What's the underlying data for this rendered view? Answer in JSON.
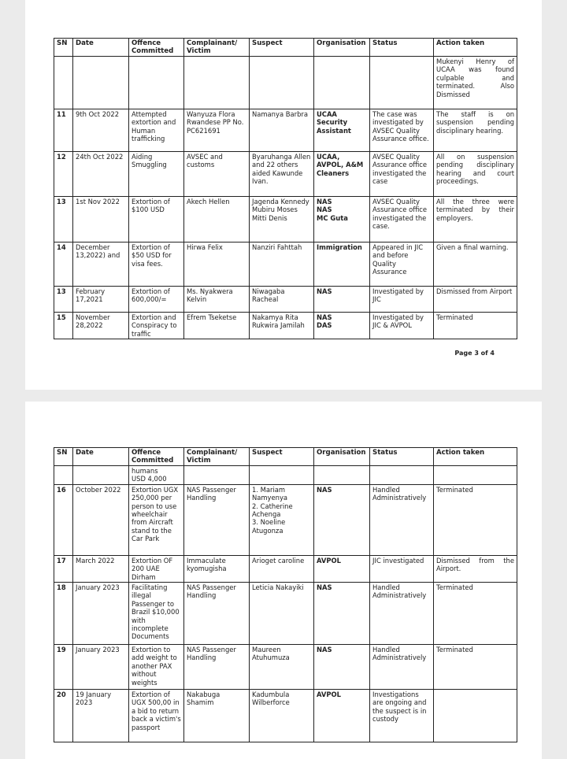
{
  "headers": [
    "SN",
    "Date",
    "Offence Committed",
    "Complainant/ Victim",
    "Suspect",
    "Organisation",
    "Status",
    "Action taken"
  ],
  "page1": {
    "rows": [
      {
        "sn": "",
        "date": "",
        "offence": "",
        "complainant": "",
        "suspect": "",
        "org": "",
        "status": "",
        "action": "Mukenyi Henry of UCAA was found culpable and terminated. Also Dismissed"
      },
      {
        "sn": "11",
        "date": "9th Oct 2022",
        "offence": "Attempted extortion and Human trafficking",
        "complainant": "Wanyuza Flora Rwandese PP No. PC621691",
        "suspect": "Namanya Barbra",
        "org": "UCAA Security Assistant",
        "status": "The case was investigated by AVSEC Quality Assurance office.",
        "action": "The staff is on suspension pending disciplinary hearing."
      },
      {
        "sn": "12",
        "date": "24th Oct 2022",
        "offence": "Aiding Smuggling",
        "complainant": "AVSEC and customs",
        "suspect": "Byaruhanga Allen and 22 others aided Kawunde Ivan.",
        "org": "UCAA, AVPOL, A&M Cleaners",
        "status": "AVSEC Quality Assurance office investigated the case",
        "action": "All on suspension pending disciplinary hearing and court proceedings."
      },
      {
        "sn": "13",
        "date": "1st Nov 2022",
        "offence": "Extortion of $100 USD",
        "complainant": "Akech Hellen",
        "suspect": "Jagenda Kennedy\nMubiru Moses\nMitti Denis",
        "org": "NAS\nNAS\nMC Guta",
        "status": "AVSEC Quality Assurance office investigated the case.",
        "action": "All the three were terminated by their employers."
      },
      {
        "sn": "14",
        "date": "December 13,2022) and",
        "offence": "Extortion of $50 USD for visa fees.",
        "complainant": "Hirwa Felix",
        "suspect": "Nanziri Fahttah",
        "org": "Immigration",
        "status": "Appeared in JIC and before Quality Assurance",
        "action": "Given a final warning."
      },
      {
        "sn": "13",
        "date": "February 17,2021",
        "offence": "Extortion of 600,000/=",
        "complainant": "Ms. Nyakwera Kelvin",
        "suspect": "Niwagaba Racheal",
        "org": "NAS",
        "status": "Investigated by JIC",
        "action": "Dismissed from Airport"
      },
      {
        "sn": "15",
        "date": "November 28,2022",
        "offence": "Extortion and Conspiracy to traffic",
        "complainant": "Efrem Tseketse",
        "suspect": "Nakamya Rita\nRukwira Jamilah",
        "org": "NAS\nDAS",
        "status": "Investigated by JIC & AVPOL",
        "action": "Terminated"
      }
    ],
    "page_label": "Page 3 of 4"
  },
  "page2": {
    "rows": [
      {
        "sn": "",
        "date": "",
        "offence": "humans\nUSD 4,000",
        "complainant": "",
        "suspect": "",
        "org": "",
        "status": "",
        "action": ""
      },
      {
        "sn": "16",
        "date": "October 2022",
        "offence": "Extortion UGX 250,000 per person to use wheelchair from Aircraft stand to the Car Park",
        "complainant": "NAS Passenger Handling",
        "suspect": "1. Mariam Namyenya\n2. Catherine Achenga\n3. Noeline Atugonza",
        "org": "NAS",
        "status": "Handled Administratively",
        "action": "Terminated"
      },
      {
        "sn": "17",
        "date": "March 2022",
        "offence": "Extortion OF 200 UAE Dirham",
        "complainant": "Immaculate kyomugisha",
        "suspect": "Arioget caroline",
        "org": "AVPOL",
        "status": "JIC investigated",
        "action": "Dismissed from the Airport."
      },
      {
        "sn": "18",
        "date": "January 2023",
        "offence": "Facilitating illegal Passenger to Brazil $10,000 with incomplete Documents",
        "complainant": "NAS Passenger Handling",
        "suspect": "Leticia Nakayiki",
        "org": "NAS",
        "status": "Handled Administratively",
        "action": "Terminated"
      },
      {
        "sn": "19",
        "date": "January 2023",
        "offence": "Extortion to add weight to another PAX without weights",
        "complainant": "NAS Passenger Handling",
        "suspect": "Maureen Atuhumuza",
        "org": "NAS",
        "status": "Handled Administratively",
        "action": "Terminated"
      },
      {
        "sn": "20",
        "date": "19 January 2023",
        "offence": "Extortion of UGX 500,00 in a bid to return back a victim's passport",
        "complainant": "Nakabuga Shamim",
        "suspect": "Kadumbula Wilberforce",
        "org": "AVPOL",
        "status": "Investigations are ongoing and the suspect is in custody",
        "action": ""
      }
    ]
  }
}
